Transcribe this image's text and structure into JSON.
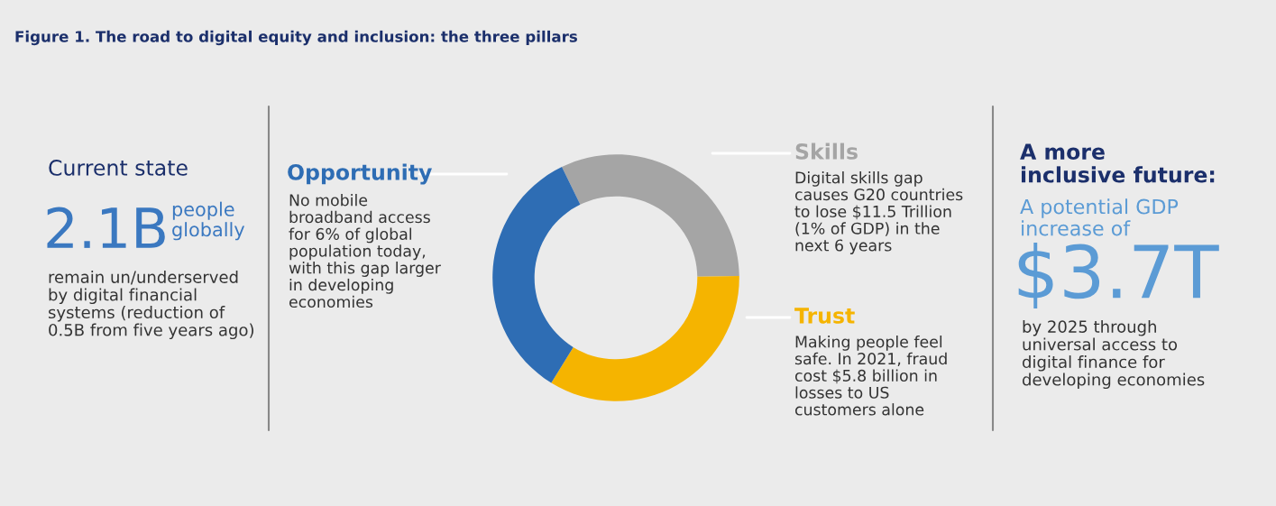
{
  "chart_data": {
    "type": "donut",
    "title": "Figure 1. The road to digital equity and inclusion: the three pillars",
    "categories": [
      "Skills",
      "Trust",
      "Opportunity"
    ],
    "values": [
      32,
      34,
      34
    ],
    "colors": [
      "#a5a5a5",
      "#f5b400",
      "#2e6db4"
    ],
    "annotations": [
      "Current state",
      "2.1B",
      "people\nglobally",
      "remain un/underserved\nby digital financial\nsystems (reduction of\n0.5B from five years ago)",
      "No mobile\nbroadband access\nfor 6% of global\npopulation today,\nwith this gap larger\nin developing\neconomies",
      "Digital skills gap\ncauses G20 countries\nto lose $11.5 Trillion\n(1% of GDP) in the\nnext 6 years",
      "Making people feel\nsafe. In 2021, fraud\ncost $5.8 billion in\nlosses to US\ncustomers alone",
      "A more\ninclusive future:",
      "A potential GDP\nincrease of",
      "$3.7T",
      "by 2025 through\nuniversal access to\ndigital finance for\ndeveloping economies"
    ]
  }
}
